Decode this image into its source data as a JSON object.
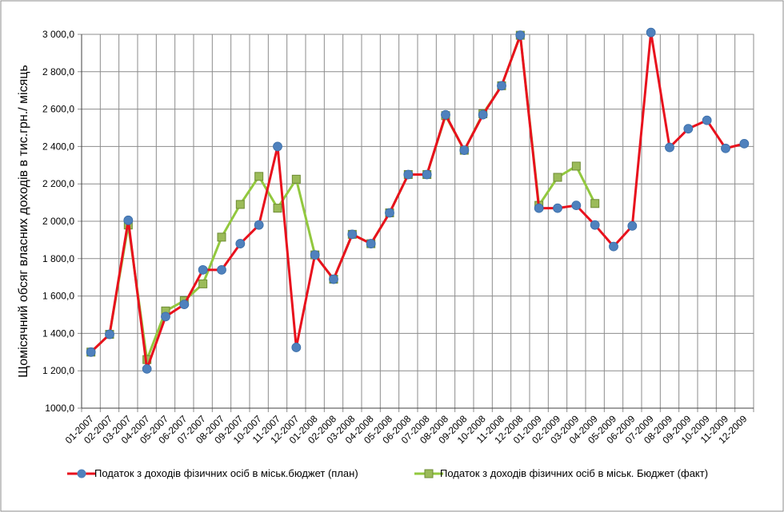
{
  "chart_data": {
    "type": "line",
    "ylabel": "Щомісячний обсяг власних доходів в тис.грн./ місяць",
    "ylim": [
      1000,
      3000
    ],
    "yticks": [
      1000,
      1200,
      1400,
      1600,
      1800,
      2000,
      2200,
      2400,
      2600,
      2800,
      3000
    ],
    "ytick_labels": [
      "1000,0",
      "1 200,0",
      "1 400,0",
      "1 600,0",
      "1 800,0",
      "2 000,0",
      "2 200,0",
      "2 400,0",
      "2 600,0",
      "2 800,0",
      "3 000,0"
    ],
    "grid": true,
    "legend_position": "bottom",
    "categories": [
      "01-2007",
      "02-2007",
      "03-2007",
      "04-2007",
      "05-2007",
      "06-2007",
      "07-2007",
      "08-2007",
      "09-2007",
      "10-2007",
      "11-2007",
      "12-2007",
      "01-2008",
      "02-2008",
      "03-2008",
      "04-2008",
      "05-2008",
      "06-2008",
      "07-2008",
      "08-2008",
      "09-2008",
      "10-2008",
      "11-2008",
      "12-2008",
      "01-2009",
      "02-2009",
      "03-2009",
      "04-2009",
      "05-2009",
      "06-2009",
      "07-2009",
      "08-2009",
      "09-2009",
      "10-2009",
      "11-2009",
      "12-2009"
    ],
    "series": [
      {
        "name": "Податок з доходів фізичних осіб в міськ.бюджет (план)",
        "color": "#e8111d",
        "marker_color": "#4f81bd",
        "marker": "circle",
        "values": [
          1300,
          1395,
          2005,
          1210,
          1490,
          1555,
          1740,
          1740,
          1880,
          1980,
          2400,
          1325,
          1820,
          1690,
          1930,
          1880,
          2045,
          2250,
          2250,
          2570,
          2380,
          2570,
          2725,
          2995,
          2070,
          2070,
          2085,
          1980,
          1865,
          1975,
          3010,
          2395,
          2495,
          2540,
          2390,
          2415
        ]
      },
      {
        "name": "Податок з доходів фізичних осіб в міськ. Бюджет (факт)",
        "color": "#92c83e",
        "marker_color": "#9bbb59",
        "marker": "square",
        "values": [
          1300,
          1395,
          1980,
          1260,
          1520,
          1575,
          1665,
          1915,
          2090,
          2240,
          2070,
          2225,
          1820,
          1690,
          1930,
          1880,
          2045,
          2250,
          2250,
          2565,
          2380,
          2575,
          2725,
          2995,
          2085,
          2235,
          2295,
          2095,
          null,
          null,
          null,
          null,
          null,
          null,
          null,
          null
        ]
      }
    ]
  }
}
